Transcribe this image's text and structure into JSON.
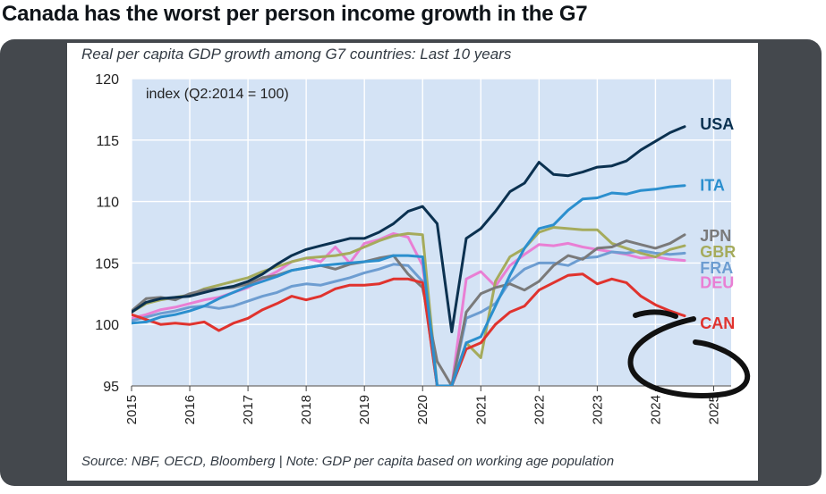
{
  "post": {
    "headline": "Canada has the worst per person income growth in the G7"
  },
  "chart_data": {
    "type": "line",
    "title": "Real per capita GDP growth among G7 countries: Last 10 years",
    "index_note": "index (Q2:2014 = 100)",
    "source": "Source: NBF, OECD, Bloomberg | Note: GDP per capita based on working age population",
    "xlabel": "",
    "ylabel": "",
    "xlim": [
      2015,
      2025.3
    ],
    "ylim": [
      95,
      120
    ],
    "y_ticks": [
      95,
      100,
      105,
      110,
      115,
      120
    ],
    "x_ticks": [
      "2015",
      "2016",
      "2017",
      "2018",
      "2019",
      "2020",
      "2021",
      "2022",
      "2023",
      "2024",
      "2025"
    ],
    "series": [
      {
        "name": "USA",
        "color": "#0b3150",
        "x": [
          2015,
          2015.25,
          2015.5,
          2015.75,
          2016,
          2016.25,
          2016.5,
          2016.75,
          2017,
          2017.25,
          2017.5,
          2017.75,
          2018,
          2018.25,
          2018.5,
          2018.75,
          2019,
          2019.25,
          2019.5,
          2019.75,
          2020,
          2020.25,
          2020.5,
          2020.75,
          2021,
          2021.25,
          2021.5,
          2021.75,
          2022,
          2022.25,
          2022.5,
          2022.75,
          2023,
          2023.25,
          2023.5,
          2023.75,
          2024,
          2024.25,
          2024.5
        ],
        "values": [
          101,
          101.8,
          102.1,
          102.2,
          102.3,
          102.6,
          102.9,
          103.1,
          103.5,
          104.1,
          104.9,
          105.6,
          106.1,
          106.4,
          106.7,
          107,
          107,
          107.5,
          108.2,
          109.2,
          109.6,
          108.2,
          99.4,
          107,
          107.8,
          109.2,
          110.8,
          111.5,
          113.2,
          112.2,
          112.1,
          112.4,
          112.8,
          112.9,
          113.3,
          114.2,
          114.9,
          115.6,
          116.1
        ]
      },
      {
        "name": "ITA",
        "color": "#2b8fce",
        "x": [
          2015,
          2015.25,
          2015.5,
          2015.75,
          2016,
          2016.25,
          2016.5,
          2016.75,
          2017,
          2017.25,
          2017.5,
          2017.75,
          2018,
          2018.25,
          2018.5,
          2018.75,
          2019,
          2019.25,
          2019.5,
          2019.75,
          2020,
          2020.25,
          2020.5,
          2020.75,
          2021,
          2021.25,
          2021.5,
          2021.75,
          2022,
          2022.25,
          2022.5,
          2022.75,
          2023,
          2023.25,
          2023.5,
          2023.75,
          2024,
          2024.25,
          2024.5
        ],
        "values": [
          100.1,
          100.2,
          100.6,
          100.8,
          101.1,
          101.5,
          102.1,
          102.6,
          103.1,
          103.5,
          103.9,
          104.4,
          104.6,
          104.8,
          104.9,
          105,
          105.1,
          105.2,
          105.6,
          105.6,
          105.5,
          95,
          95,
          98.5,
          99,
          101.5,
          104,
          106.2,
          107.8,
          108.1,
          109.3,
          110.2,
          110.3,
          110.7,
          110.6,
          110.9,
          111,
          111.2,
          111.3
        ]
      },
      {
        "name": "JPN",
        "color": "#7a7a7a",
        "x": [
          2015,
          2015.25,
          2015.5,
          2015.75,
          2016,
          2016.25,
          2016.5,
          2016.75,
          2017,
          2017.25,
          2017.5,
          2017.75,
          2018,
          2018.25,
          2018.5,
          2018.75,
          2019,
          2019.25,
          2019.5,
          2019.75,
          2020,
          2020.25,
          2020.5,
          2020.75,
          2021,
          2021.25,
          2021.5,
          2021.75,
          2022,
          2022.25,
          2022.5,
          2022.75,
          2023,
          2023.25,
          2023.5,
          2023.75,
          2024,
          2024.25,
          2024.5
        ],
        "values": [
          101.1,
          102.1,
          102.2,
          102,
          102.5,
          102.8,
          102.9,
          103,
          103.3,
          103.8,
          104,
          104.4,
          104.6,
          104.8,
          104.5,
          104.9,
          105.1,
          105.4,
          105.6,
          104.1,
          103,
          97,
          95,
          101,
          102.5,
          103,
          103.3,
          102.8,
          103.5,
          104.8,
          105.6,
          105.3,
          106.2,
          106.3,
          106.8,
          106.5,
          106.2,
          106.6,
          107.3
        ]
      },
      {
        "name": "GBR",
        "color": "#a5ab5c",
        "x": [
          2015,
          2015.25,
          2015.5,
          2015.75,
          2016,
          2016.25,
          2016.5,
          2016.75,
          2017,
          2017.25,
          2017.5,
          2017.75,
          2018,
          2018.25,
          2018.5,
          2018.75,
          2019,
          2019.25,
          2019.5,
          2019.75,
          2020,
          2020.25,
          2020.5,
          2020.75,
          2021,
          2021.25,
          2021.5,
          2021.75,
          2022,
          2022.25,
          2022.5,
          2022.75,
          2023,
          2023.25,
          2023.5,
          2023.75,
          2024,
          2024.25,
          2024.5
        ],
        "values": [
          101,
          101.7,
          102,
          102.2,
          102.4,
          102.9,
          103.2,
          103.5,
          103.8,
          104.3,
          104.7,
          105.1,
          105.4,
          105.5,
          105.6,
          105.8,
          106.3,
          106.8,
          107.2,
          107.4,
          107.3,
          95,
          95,
          98.5,
          97.3,
          103.5,
          105.5,
          106.2,
          107.5,
          107.9,
          107.8,
          107.7,
          107.7,
          106.6,
          106.2,
          105.8,
          105.5,
          106.1,
          106.4
        ]
      },
      {
        "name": "FRA",
        "color": "#6d9dd1",
        "x": [
          2015,
          2015.25,
          2015.5,
          2015.75,
          2016,
          2016.25,
          2016.5,
          2016.75,
          2017,
          2017.25,
          2017.5,
          2017.75,
          2018,
          2018.25,
          2018.5,
          2018.75,
          2019,
          2019.25,
          2019.5,
          2019.75,
          2020,
          2020.25,
          2020.5,
          2020.75,
          2021,
          2021.25,
          2021.5,
          2021.75,
          2022,
          2022.25,
          2022.5,
          2022.75,
          2023,
          2023.25,
          2023.5,
          2023.75,
          2024,
          2024.25,
          2024.5
        ],
        "values": [
          100.3,
          100.6,
          100.9,
          101.1,
          101.4,
          101.5,
          101.3,
          101.5,
          101.9,
          102.3,
          102.6,
          103.1,
          103.3,
          103.2,
          103.5,
          103.8,
          104.2,
          104.5,
          104.9,
          104.8,
          103.5,
          95,
          95,
          100.5,
          101,
          101.7,
          103.5,
          104.5,
          105,
          105,
          104.8,
          105.4,
          105.5,
          105.9,
          105.8,
          106,
          105.8,
          105.7,
          105.8
        ]
      },
      {
        "name": "DEU",
        "color": "#e97fd4",
        "x": [
          2015,
          2015.25,
          2015.5,
          2015.75,
          2016,
          2016.25,
          2016.5,
          2016.75,
          2017,
          2017.25,
          2017.5,
          2017.75,
          2018,
          2018.25,
          2018.5,
          2018.75,
          2019,
          2019.25,
          2019.5,
          2019.75,
          2020,
          2020.25,
          2020.5,
          2020.75,
          2021,
          2021.25,
          2021.5,
          2021.75,
          2022,
          2022.25,
          2022.5,
          2022.75,
          2023,
          2023.25,
          2023.5,
          2023.75,
          2024,
          2024.25,
          2024.5
        ],
        "values": [
          100.5,
          100.8,
          101.2,
          101.4,
          101.7,
          102,
          102.2,
          102.6,
          103,
          103.7,
          104.3,
          105.1,
          105.4,
          105.1,
          106.3,
          105,
          106.6,
          106.9,
          107.4,
          107.1,
          104.8,
          95,
          95,
          103.7,
          104.3,
          103.1,
          104.8,
          105.7,
          106.5,
          106.4,
          106.6,
          106.3,
          106.1,
          105.9,
          105.7,
          105.4,
          105.5,
          105.3,
          105.2
        ]
      },
      {
        "name": "CAN",
        "color": "#e0332e",
        "x": [
          2015,
          2015.25,
          2015.5,
          2015.75,
          2016,
          2016.25,
          2016.5,
          2016.75,
          2017,
          2017.25,
          2017.5,
          2017.75,
          2018,
          2018.25,
          2018.5,
          2018.75,
          2019,
          2019.25,
          2019.5,
          2019.75,
          2020,
          2020.25,
          2020.5,
          2020.75,
          2021,
          2021.25,
          2021.5,
          2021.75,
          2022,
          2022.25,
          2022.5,
          2022.75,
          2023,
          2023.25,
          2023.5,
          2023.75,
          2024,
          2024.25,
          2024.5
        ],
        "values": [
          100.8,
          100.4,
          100,
          100.1,
          100,
          100.2,
          99.5,
          100.1,
          100.5,
          101.2,
          101.7,
          102.3,
          102,
          102.3,
          102.9,
          103.2,
          103.2,
          103.3,
          103.7,
          103.7,
          103.4,
          95,
          95,
          98,
          98.5,
          100,
          101,
          101.5,
          102.8,
          103.4,
          104,
          104.1,
          103.3,
          103.7,
          103.4,
          102.3,
          101.6,
          101.1,
          100.7
        ]
      }
    ]
  }
}
